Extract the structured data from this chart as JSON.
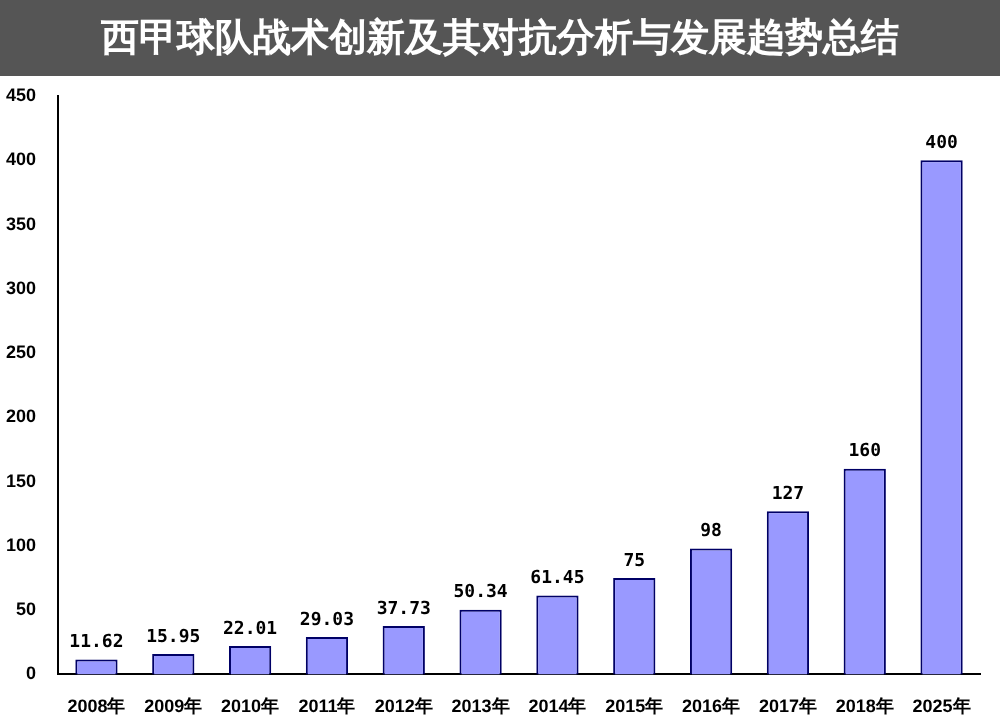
{
  "chart_data": {
    "type": "bar",
    "title": "西甲球队战术创新及其对抗分析与发展趋势总结",
    "categories": [
      "2008年",
      "2009年",
      "2010年",
      "2011年",
      "2012年",
      "2013年",
      "2014年",
      "2015年",
      "2016年",
      "2017年",
      "2018年",
      "2025年"
    ],
    "values": [
      11.62,
      15.95,
      22.01,
      29.03,
      37.73,
      50.34,
      61.45,
      75,
      98,
      127,
      160,
      400
    ],
    "color": "#9999ff",
    "ylim": [
      0,
      450
    ],
    "yticks": [
      0,
      50,
      100,
      150,
      200,
      250,
      300,
      350,
      400,
      450
    ],
    "grid": false,
    "data_labels": true
  }
}
